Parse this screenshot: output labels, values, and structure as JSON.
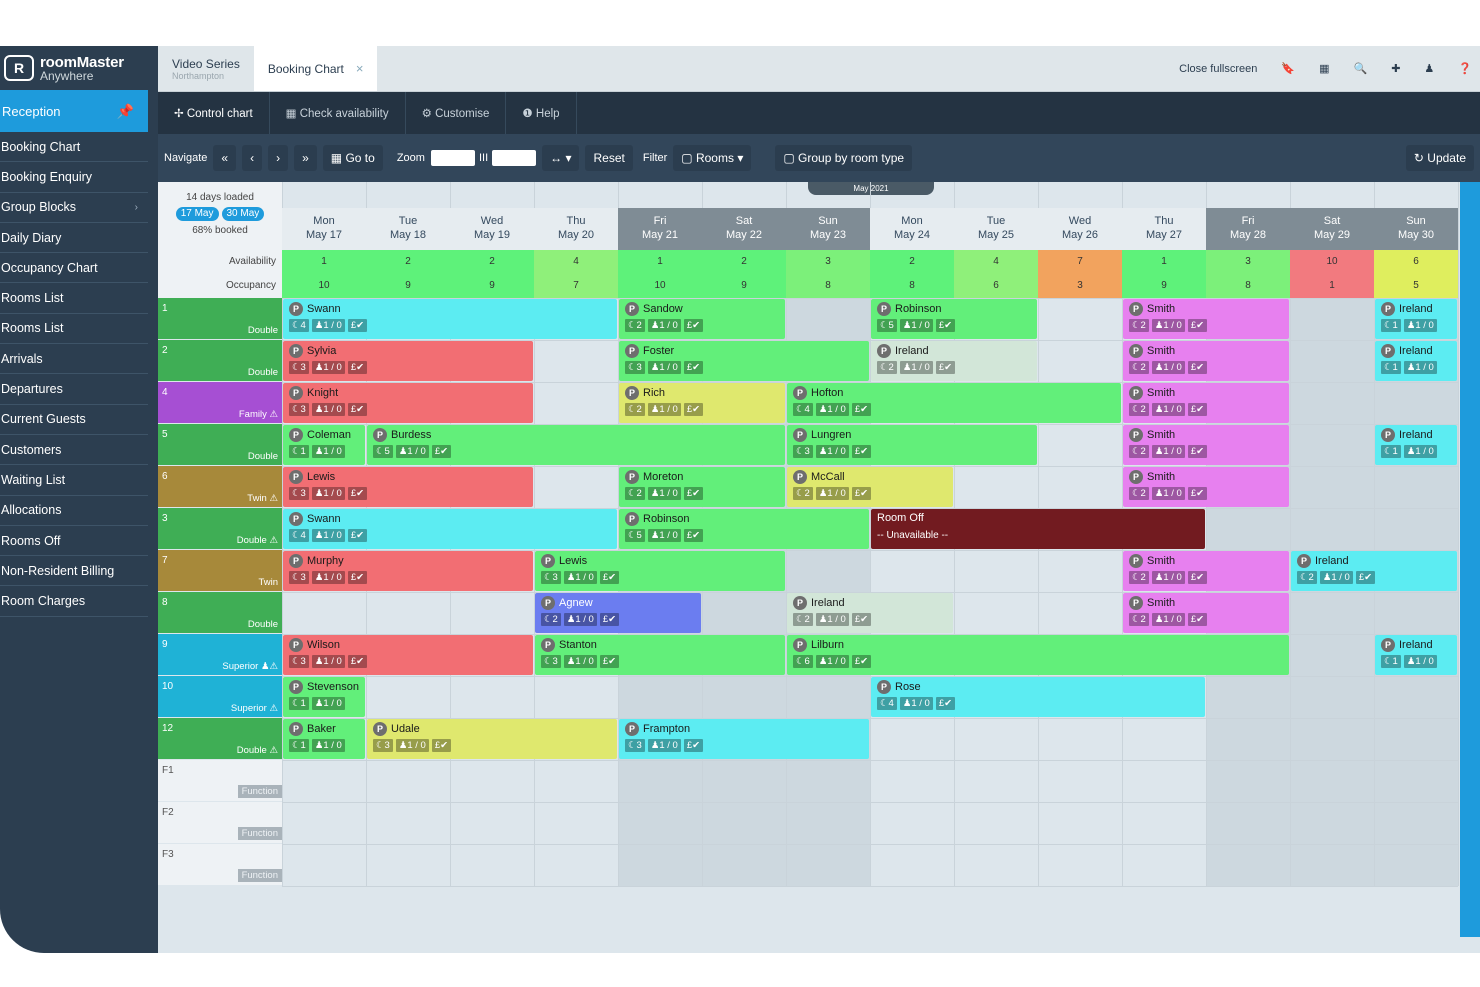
{
  "logo": {
    "mark": "R",
    "line1": "roomMaster",
    "line2": "Anywhere"
  },
  "sidebar": {
    "section": "Reception",
    "items": [
      {
        "label": "Booking Chart"
      },
      {
        "label": "Booking Enquiry"
      },
      {
        "label": "Group Blocks",
        "chevron": "›"
      },
      {
        "label": "Daily Diary"
      },
      {
        "label": "Occupancy Chart"
      },
      {
        "label": "Rooms List"
      },
      {
        "label": "Rooms List"
      },
      {
        "label": "Arrivals"
      },
      {
        "label": "Departures"
      },
      {
        "label": "Current Guests"
      },
      {
        "label": "Customers"
      },
      {
        "label": "Waiting List"
      },
      {
        "label": "Allocations"
      },
      {
        "label": "Rooms Off"
      },
      {
        "label": "Non-Resident Billing"
      },
      {
        "label": "Room Charges"
      }
    ]
  },
  "tabs": {
    "tab1": {
      "title": "Video Series",
      "sub": "Northampton"
    },
    "tab2": {
      "title": "Booking Chart",
      "close": "×"
    },
    "close_fullscreen": "Close fullscreen"
  },
  "toolbar1": {
    "control": "✢ Control chart",
    "check": "▦ Check availability",
    "customise": "⚙ Customise",
    "help": "❶ Help"
  },
  "toolbar2": {
    "navigate": "Navigate",
    "first": "«",
    "prev": "‹",
    "next": "›",
    "last": "»",
    "goto": "▦ Go to",
    "zoom": "Zoom",
    "zoom_mid": "III",
    "expand": "↔ ▾",
    "reset": "Reset",
    "filter": "Filter",
    "rooms": "▢ Rooms ▾",
    "group": "▢ Group by room type",
    "update": "↻ Update"
  },
  "chart_header": {
    "loaded": "14 days loaded",
    "from": "17 May",
    "to": "30 May",
    "booked": "68% booked",
    "month": "May 2021",
    "availability_label": "Availability",
    "occupancy_label": "Occupancy"
  },
  "days": [
    {
      "dow": "Mon",
      "date": "May 17",
      "we": false,
      "avail": "1",
      "occ": "10",
      "avail_color": "#5ef27a",
      "occ_color": "#5ef27a"
    },
    {
      "dow": "Tue",
      "date": "May 18",
      "we": false,
      "avail": "2",
      "occ": "9",
      "avail_color": "#5ef27a",
      "occ_color": "#5ef27a"
    },
    {
      "dow": "Wed",
      "date": "May 19",
      "we": false,
      "avail": "2",
      "occ": "9",
      "avail_color": "#5ef27a",
      "occ_color": "#5ef27a"
    },
    {
      "dow": "Thu",
      "date": "May 20",
      "we": false,
      "avail": "4",
      "occ": "7",
      "avail_color": "#8ff07a",
      "occ_color": "#8ff07a"
    },
    {
      "dow": "Fri",
      "date": "May 21",
      "we": true,
      "avail": "1",
      "occ": "10",
      "avail_color": "#5ef27a",
      "occ_color": "#5ef27a"
    },
    {
      "dow": "Sat",
      "date": "May 22",
      "we": true,
      "avail": "2",
      "occ": "9",
      "avail_color": "#5ef27a",
      "occ_color": "#5ef27a"
    },
    {
      "dow": "Sun",
      "date": "May 23",
      "we": true,
      "avail": "3",
      "occ": "8",
      "avail_color": "#7cf07a",
      "occ_color": "#7cf07a"
    },
    {
      "dow": "Mon",
      "date": "May 24",
      "we": false,
      "avail": "2",
      "occ": "8",
      "avail_color": "#5ef27a",
      "occ_color": "#5ef27a"
    },
    {
      "dow": "Tue",
      "date": "May 25",
      "we": false,
      "avail": "4",
      "occ": "6",
      "avail_color": "#8ff07a",
      "occ_color": "#8ff07a"
    },
    {
      "dow": "Wed",
      "date": "May 26",
      "we": false,
      "avail": "7",
      "occ": "3",
      "avail_color": "#f2a35e",
      "occ_color": "#f2a35e"
    },
    {
      "dow": "Thu",
      "date": "May 27",
      "we": false,
      "avail": "1",
      "occ": "9",
      "avail_color": "#5ef27a",
      "occ_color": "#5ef27a"
    },
    {
      "dow": "Fri",
      "date": "May 28",
      "we": true,
      "avail": "3",
      "occ": "8",
      "avail_color": "#7cf07a",
      "occ_color": "#7cf07a"
    },
    {
      "dow": "Sat",
      "date": "May 29",
      "we": true,
      "avail": "10",
      "occ": "1",
      "avail_color": "#f27a7f",
      "occ_color": "#f27a7f"
    },
    {
      "dow": "Sun",
      "date": "May 30",
      "we": true,
      "avail": "6",
      "occ": "5",
      "avail_color": "#dfee5e",
      "occ_color": "#dfee5e"
    }
  ],
  "rooms": [
    {
      "num": "1",
      "type": "Double",
      "color": "#3fae55"
    },
    {
      "num": "2",
      "type": "Double",
      "color": "#3fae55"
    },
    {
      "num": "4",
      "type": "Family ⚠",
      "color": "#a64fd3"
    },
    {
      "num": "5",
      "type": "Double",
      "color": "#3fae55"
    },
    {
      "num": "6",
      "type": "Twin ⚠",
      "color": "#a7893a"
    },
    {
      "num": "3",
      "type": "Double ⚠",
      "color": "#3fae55"
    },
    {
      "num": "7",
      "type": "Twin",
      "color": "#a7893a"
    },
    {
      "num": "8",
      "type": "Double",
      "color": "#3fae55"
    },
    {
      "num": "9",
      "type": "Superior ♟⚠",
      "color": "#1fb2d6"
    },
    {
      "num": "10",
      "type": "Superior ⚠",
      "color": "#1fb2d6"
    },
    {
      "num": "12",
      "type": "Double ⚠",
      "color": "#3fae55"
    },
    {
      "num": "F1",
      "type": "Function",
      "color": "#eef2f5"
    },
    {
      "num": "F2",
      "type": "Function",
      "color": "#eef2f5"
    },
    {
      "num": "F3",
      "type": "Function",
      "color": "#eef2f5"
    }
  ],
  "bookings": [
    {
      "row": 0,
      "start": 0,
      "span": 4,
      "name": "Swann",
      "nights": "4",
      "color": "#5cecf2"
    },
    {
      "row": 0,
      "start": 4,
      "span": 2,
      "name": "Sandow",
      "nights": "2",
      "color": "#62ef7a"
    },
    {
      "row": 0,
      "start": 7,
      "span": 2,
      "name": "Robinson",
      "nights": "5",
      "color": "#62ef7a"
    },
    {
      "row": 0,
      "start": 10,
      "span": 2,
      "name": "Smith",
      "nights": "2",
      "color": "#e780ef"
    },
    {
      "row": 0,
      "start": 13,
      "span": 1,
      "name": "Ireland",
      "nights": "1",
      "color": "#5cecf2"
    },
    {
      "row": 1,
      "start": 0,
      "span": 3,
      "name": "Sylvia",
      "nights": "3",
      "color": "#f26e73"
    },
    {
      "row": 1,
      "start": 4,
      "span": 3,
      "name": "Foster",
      "nights": "3",
      "color": "#62ef7a"
    },
    {
      "row": 1,
      "start": 7,
      "span": 2,
      "name": "Ireland",
      "nights": "2",
      "color": "#d2e6d8"
    },
    {
      "row": 1,
      "start": 10,
      "span": 2,
      "name": "Smith",
      "nights": "2",
      "color": "#e780ef"
    },
    {
      "row": 1,
      "start": 13,
      "span": 1,
      "name": "Ireland",
      "nights": "1",
      "color": "#5cecf2"
    },
    {
      "row": 2,
      "start": 0,
      "span": 3,
      "name": "Knight",
      "nights": "3",
      "color": "#f26e73"
    },
    {
      "row": 2,
      "start": 4,
      "span": 2,
      "name": "Rich",
      "nights": "2",
      "color": "#dfe86e"
    },
    {
      "row": 2,
      "start": 6,
      "span": 4,
      "name": "Hofton",
      "nights": "4",
      "color": "#62ef7a"
    },
    {
      "row": 2,
      "start": 10,
      "span": 2,
      "name": "Smith",
      "nights": "2",
      "color": "#e780ef"
    },
    {
      "row": 3,
      "start": 0,
      "span": 1,
      "name": "Coleman",
      "nights": "1",
      "color": "#62ef7a"
    },
    {
      "row": 3,
      "start": 1,
      "span": 5,
      "name": "Burdess",
      "nights": "5",
      "color": "#62ef7a"
    },
    {
      "row": 3,
      "start": 6,
      "span": 3,
      "name": "Lungren",
      "nights": "3",
      "color": "#62ef7a"
    },
    {
      "row": 3,
      "start": 10,
      "span": 2,
      "name": "Smith",
      "nights": "2",
      "color": "#e780ef"
    },
    {
      "row": 3,
      "start": 13,
      "span": 1,
      "name": "Ireland",
      "nights": "1",
      "color": "#5cecf2"
    },
    {
      "row": 4,
      "start": 0,
      "span": 3,
      "name": "Lewis",
      "nights": "3",
      "color": "#f26e73"
    },
    {
      "row": 4,
      "start": 4,
      "span": 2,
      "name": "Moreton",
      "nights": "2",
      "color": "#62ef7a"
    },
    {
      "row": 4,
      "start": 6,
      "span": 2,
      "name": "McCall",
      "nights": "2",
      "color": "#dfe86e"
    },
    {
      "row": 4,
      "start": 10,
      "span": 2,
      "name": "Smith",
      "nights": "2",
      "color": "#e780ef"
    },
    {
      "row": 5,
      "start": 0,
      "span": 4,
      "name": "Swann",
      "nights": "4",
      "color": "#5cecf2"
    },
    {
      "row": 5,
      "start": 4,
      "span": 3,
      "name": "Robinson",
      "nights": "5",
      "color": "#62ef7a"
    },
    {
      "row": 6,
      "start": 0,
      "span": 3,
      "name": "Murphy",
      "nights": "3",
      "color": "#f26e73"
    },
    {
      "row": 6,
      "start": 3,
      "span": 3,
      "name": "Lewis",
      "nights": "3",
      "color": "#62ef7a"
    },
    {
      "row": 6,
      "start": 10,
      "span": 2,
      "name": "Smith",
      "nights": "2",
      "color": "#e780ef"
    },
    {
      "row": 6,
      "start": 12,
      "span": 2,
      "name": "Ireland",
      "nights": "2",
      "color": "#5cecf2"
    },
    {
      "row": 7,
      "start": 3,
      "span": 2,
      "name": "Agnew",
      "nights": "2",
      "color": "#6b7df0"
    },
    {
      "row": 7,
      "start": 6,
      "span": 2,
      "name": "Ireland",
      "nights": "2",
      "color": "#d2e6d8"
    },
    {
      "row": 7,
      "start": 10,
      "span": 2,
      "name": "Smith",
      "nights": "2",
      "color": "#e780ef"
    },
    {
      "row": 8,
      "start": 0,
      "span": 3,
      "name": "Wilson",
      "nights": "3",
      "color": "#f26e73"
    },
    {
      "row": 8,
      "start": 3,
      "span": 3,
      "name": "Stanton",
      "nights": "3",
      "color": "#62ef7a"
    },
    {
      "row": 8,
      "start": 6,
      "span": 6,
      "name": "Lilburn",
      "nights": "6",
      "color": "#62ef7a"
    },
    {
      "row": 8,
      "start": 13,
      "span": 1,
      "name": "Ireland",
      "nights": "1",
      "color": "#5cecf2"
    },
    {
      "row": 9,
      "start": 0,
      "span": 1,
      "name": "Stevenson",
      "nights": "1",
      "color": "#62ef7a"
    },
    {
      "row": 9,
      "start": 7,
      "span": 4,
      "name": "Rose",
      "nights": "4",
      "color": "#5cecf2"
    },
    {
      "row": 10,
      "start": 0,
      "span": 1,
      "name": "Baker",
      "nights": "1",
      "color": "#62ef7a"
    },
    {
      "row": 10,
      "start": 1,
      "span": 3,
      "name": "Udale",
      "nights": "3",
      "color": "#dfe86e"
    },
    {
      "row": 10,
      "start": 4,
      "span": 3,
      "name": "Frampton",
      "nights": "3",
      "color": "#5cecf2"
    }
  ],
  "room_off": {
    "row": 5,
    "start": 7,
    "span": 4,
    "title": "Room Off",
    "sub": "-- Unavailable --"
  },
  "chip_labels": {
    "guests": "♟1 / 0",
    "pay": "£✔",
    "p": "P"
  }
}
